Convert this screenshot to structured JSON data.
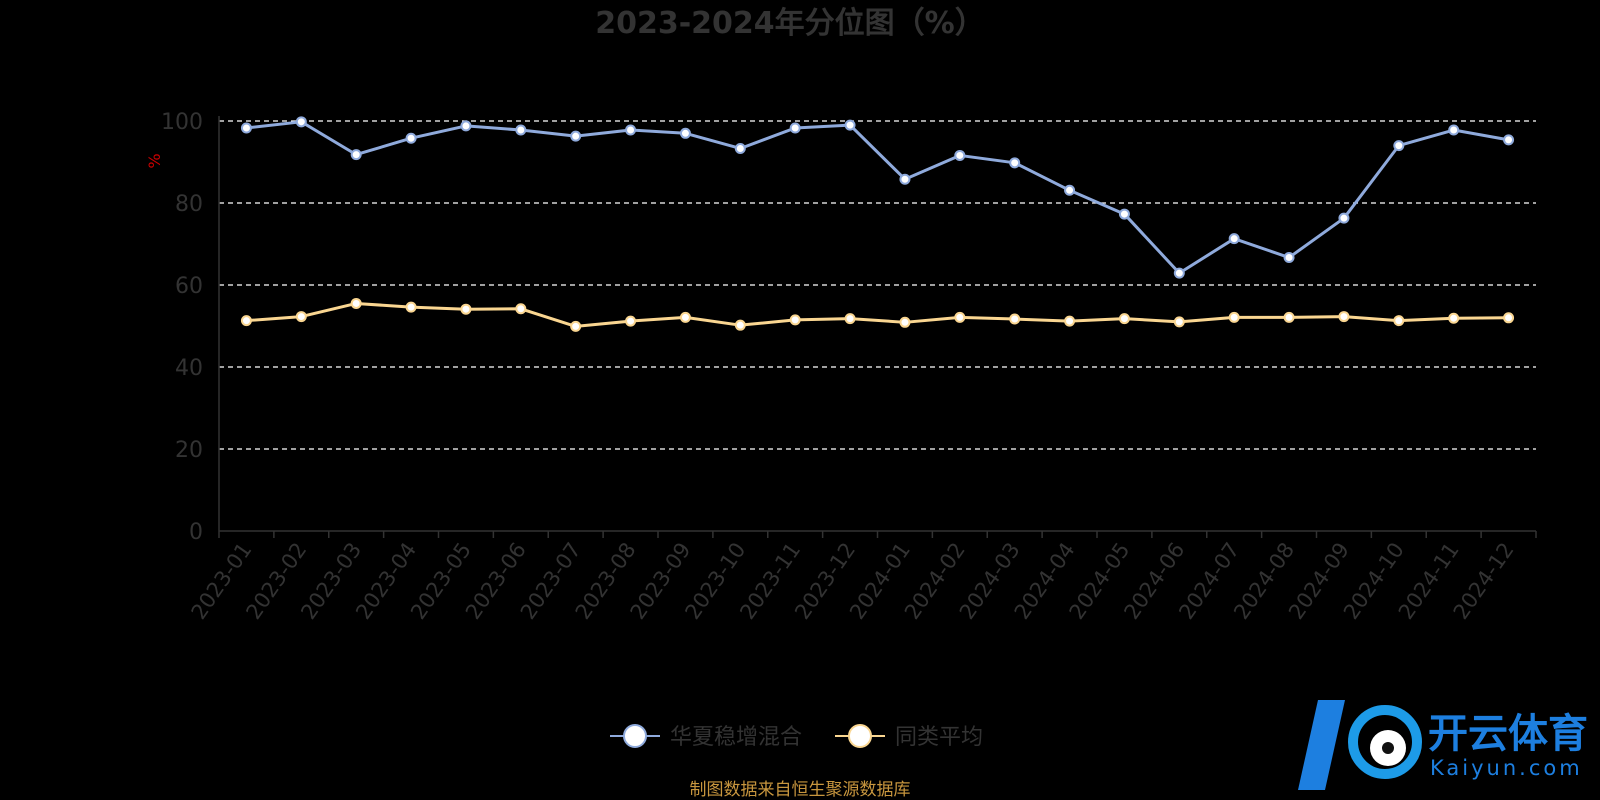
{
  "chart_data": {
    "type": "line",
    "title": "2023-2024年分位图（%）",
    "ylabel": "%",
    "ylim": [
      0,
      100
    ],
    "yticks": [
      "0",
      "20",
      "40",
      "60",
      "80",
      "100"
    ],
    "grid": true,
    "legend_position": "bottom",
    "categories": [
      "2023-01",
      "2023-02",
      "2023-03",
      "2023-04",
      "2023-05",
      "2023-06",
      "2023-07",
      "2023-08",
      "2023-09",
      "2023-10",
      "2023-11",
      "2023-12",
      "2024-01",
      "2024-02",
      "2024-03",
      "2024-04",
      "2024-05",
      "2024-06",
      "2024-07",
      "2024-08",
      "2024-09",
      "2024-10",
      "2024-11",
      "2024-12"
    ],
    "series": [
      {
        "name": "华夏稳增混合",
        "color": "#8faadc",
        "values": [
          98.3,
          99.8,
          91.8,
          95.8,
          98.8,
          97.8,
          96.3,
          97.8,
          97.0,
          93.3,
          98.3,
          99.0,
          85.8,
          91.6,
          89.8,
          83.1,
          77.3,
          62.9,
          71.3,
          66.7,
          76.3,
          94.0,
          97.8,
          95.4
        ]
      },
      {
        "name": "同类平均",
        "color": "#fad691",
        "values": [
          51.3,
          52.3,
          55.5,
          54.6,
          54.1,
          54.2,
          49.9,
          51.2,
          52.1,
          50.2,
          51.5,
          51.8,
          50.9,
          52.1,
          51.7,
          51.2,
          51.8,
          51.0,
          52.1,
          52.1,
          52.3,
          51.3,
          51.9,
          52.0
        ]
      }
    ]
  },
  "footer": {
    "source": "制图数据来自恒生聚源数据库"
  },
  "watermark": {
    "name_cn": "开云体育",
    "name_en": "Kaiyun.com"
  }
}
